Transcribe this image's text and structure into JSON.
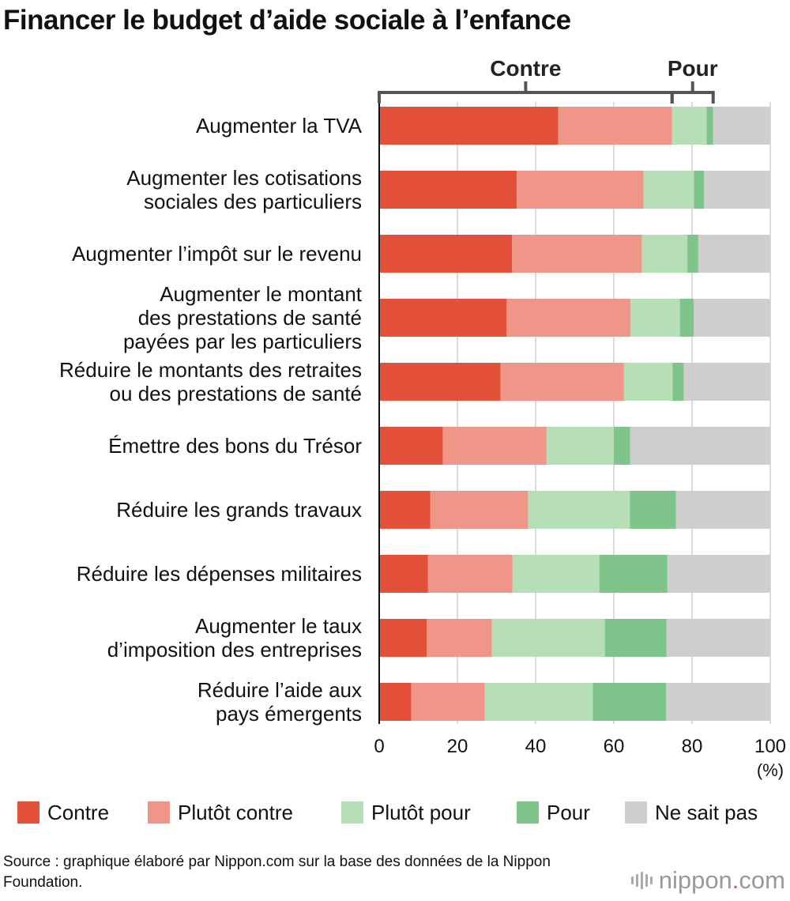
{
  "title": "Financer le budget d’aide sociale à l’enfance",
  "bracket_labels": {
    "contre": "Contre",
    "pour": "Pour"
  },
  "source": "Source : graphique élaboré par Nippon.com sur la base des données de la Nippon Foundation.",
  "logo": {
    "name": "nippon",
    "dot": ".",
    "tld": "com"
  },
  "colors": {
    "Contre": "#e4513b",
    "Plutôt contre": "#ef9688",
    "Plutôt pour": "#b6dfb8",
    "Pour": "#7fc48a",
    "Ne sait pas": "#cecece"
  },
  "chart_data": {
    "type": "bar",
    "orientation": "horizontal",
    "stacked": true,
    "title": "Financer le budget d’aide sociale à l’enfance",
    "xlabel": "(%)",
    "xlim": [
      0,
      100
    ],
    "xticks": [
      "0",
      "20",
      "40",
      "60",
      "80",
      "100"
    ],
    "grid": true,
    "legend_position": "bottom",
    "categories": [
      [
        "Augmenter la TVA"
      ],
      [
        "Augmenter les cotisations",
        "sociales des particuliers"
      ],
      [
        "Augmenter l’impôt sur le revenu"
      ],
      [
        "Augmenter le montant",
        "des prestations de santé",
        "payées par les particuliers"
      ],
      [
        "Réduire le montants des retraites",
        "ou des prestations de santé"
      ],
      [
        "Émettre des bons du Trésor"
      ],
      [
        "Réduire les grands travaux"
      ],
      [
        "Réduire les dépenses militaires"
      ],
      [
        "Augmenter le taux",
        "d’imposition des entreprises"
      ],
      [
        "Réduire l’aide aux",
        "pays émergents"
      ]
    ],
    "series": [
      {
        "name": "Contre",
        "values": [
          45.8,
          35.2,
          34.0,
          32.6,
          31.0,
          16.3,
          13.1,
          12.5,
          12.2,
          8.2
        ]
      },
      {
        "name": "Plutôt contre",
        "values": [
          29.1,
          32.4,
          33.2,
          31.7,
          31.6,
          26.5,
          25.0,
          21.6,
          16.6,
          18.8
        ]
      },
      {
        "name": "Plutôt pour",
        "values": [
          8.8,
          12.9,
          11.6,
          12.6,
          12.4,
          17.2,
          26.0,
          22.2,
          28.9,
          27.6
        ]
      },
      {
        "name": "Pour",
        "values": [
          1.7,
          2.6,
          2.8,
          3.5,
          2.9,
          4.2,
          11.8,
          17.4,
          15.8,
          18.8
        ]
      },
      {
        "name": "Ne sait pas",
        "values": [
          14.6,
          16.9,
          18.4,
          19.6,
          22.1,
          35.8,
          24.1,
          26.3,
          26.5,
          26.6
        ]
      }
    ]
  }
}
